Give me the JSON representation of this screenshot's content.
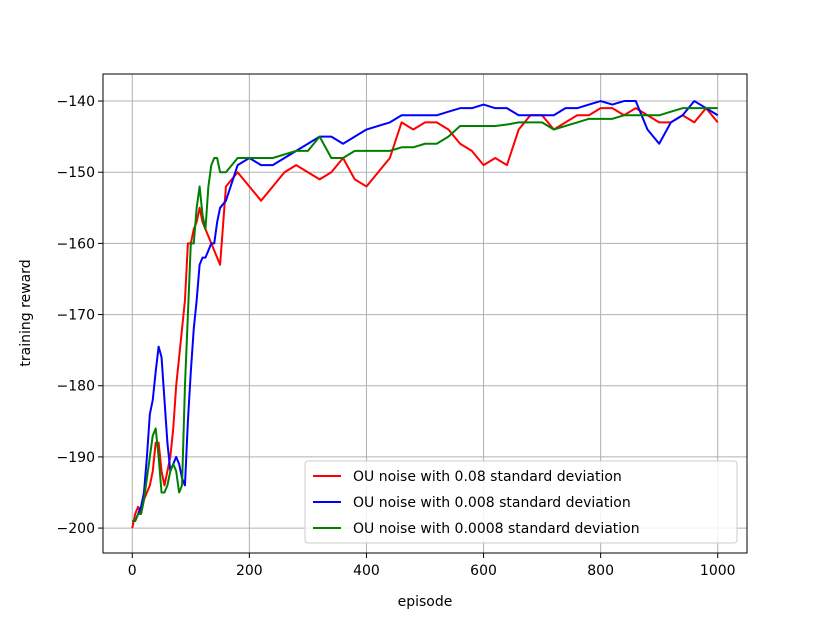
{
  "chart_data": {
    "type": "line",
    "x_label": "episode",
    "y_label": "training reward",
    "xlim": [
      -50,
      1050
    ],
    "ylim": [
      -203.5,
      -136.2
    ],
    "xticks": [
      0,
      200,
      400,
      600,
      800,
      1000
    ],
    "yticks": [
      {
        "value": -200,
        "label": "−200"
      },
      {
        "value": -190,
        "label": "−190"
      },
      {
        "value": -180,
        "label": "−180"
      },
      {
        "value": -170,
        "label": "−170"
      },
      {
        "value": -160,
        "label": "−160"
      },
      {
        "value": -150,
        "label": "−150"
      },
      {
        "value": -140,
        "label": "−140"
      }
    ],
    "grid": true,
    "legend": "lower right",
    "x": [
      0,
      5,
      10,
      15,
      20,
      25,
      30,
      35,
      40,
      45,
      50,
      55,
      60,
      65,
      70,
      75,
      80,
      85,
      90,
      95,
      100,
      105,
      110,
      115,
      120,
      125,
      130,
      135,
      140,
      145,
      150,
      160,
      180,
      200,
      220,
      240,
      260,
      280,
      300,
      320,
      340,
      360,
      380,
      400,
      420,
      440,
      460,
      480,
      500,
      520,
      540,
      560,
      580,
      600,
      620,
      640,
      660,
      680,
      700,
      720,
      740,
      760,
      780,
      800,
      820,
      840,
      860,
      880,
      900,
      920,
      940,
      960,
      980,
      1000
    ],
    "series": [
      {
        "name": "OU noise with 0.08 standard deviation",
        "color": "#ff0000",
        "values": [
          -200,
          -198,
          -197,
          -198,
          -196,
          -195,
          -194,
          -192,
          -188,
          -188,
          -192,
          -194,
          -192,
          -190,
          -186,
          -180,
          -176,
          -172,
          -168,
          -160,
          -160,
          -158,
          -157,
          -155,
          -157,
          -158,
          -159,
          -160,
          -161,
          -162,
          -163,
          -152,
          -150,
          -152,
          -154,
          -152,
          -150,
          -149,
          -150,
          -151,
          -150,
          -148,
          -151,
          -152,
          -150,
          -148,
          -143,
          -144,
          -143,
          -143,
          -144,
          -146,
          -147,
          -149,
          -148,
          -149,
          -144,
          -142,
          -142,
          -144,
          -143,
          -142,
          -142,
          -141,
          -141,
          -142,
          -141,
          -142,
          -143,
          -143,
          -142,
          -143,
          -141,
          -143
        ]
      },
      {
        "name": "OU noise with 0.008 standard deviation",
        "color": "#0000ff",
        "values": [
          -199,
          -199,
          -198,
          -197,
          -195,
          -190,
          -184,
          -182,
          -178,
          -174.5,
          -176,
          -182,
          -188,
          -192,
          -191,
          -190,
          -191,
          -193,
          -194,
          -185,
          -178,
          -172,
          -168,
          -163,
          -162,
          -162,
          -161,
          -160,
          -160,
          -157,
          -155,
          -154,
          -149,
          -148,
          -149,
          -149,
          -148,
          -147,
          -146,
          -145,
          -145,
          -146,
          -145,
          -144,
          -143.5,
          -143,
          -142,
          -142,
          -142,
          -142,
          -141.5,
          -141,
          -141,
          -140.5,
          -141,
          -141,
          -142,
          -142,
          -142,
          -142,
          -141,
          -141,
          -140.5,
          -140,
          -140.5,
          -140,
          -140,
          -144,
          -146,
          -143,
          -142,
          -140,
          -141,
          -142
        ]
      },
      {
        "name": "OU noise with 0.0008 standard deviation",
        "color": "#008000",
        "values": [
          -199,
          -199,
          -198,
          -198,
          -196,
          -193,
          -190,
          -187,
          -186,
          -190,
          -195,
          -195,
          -194,
          -192,
          -191,
          -192,
          -195,
          -194,
          -180,
          -170,
          -160,
          -160,
          -155,
          -152,
          -156,
          -158,
          -152,
          -149,
          -148,
          -148,
          -150,
          -150,
          -148,
          -148,
          -148,
          -148,
          -147.5,
          -147,
          -147,
          -145,
          -148,
          -148,
          -147,
          -147,
          -147,
          -147,
          -146.5,
          -146.5,
          -146,
          -146,
          -145,
          -143.5,
          -143.5,
          -143.5,
          -143.5,
          -143.3,
          -143,
          -143,
          -143,
          -144,
          -143.5,
          -143,
          -142.5,
          -142.5,
          -142.5,
          -142,
          -142,
          -142,
          -142,
          -141.5,
          -141,
          -141,
          -141,
          -141
        ]
      }
    ]
  }
}
